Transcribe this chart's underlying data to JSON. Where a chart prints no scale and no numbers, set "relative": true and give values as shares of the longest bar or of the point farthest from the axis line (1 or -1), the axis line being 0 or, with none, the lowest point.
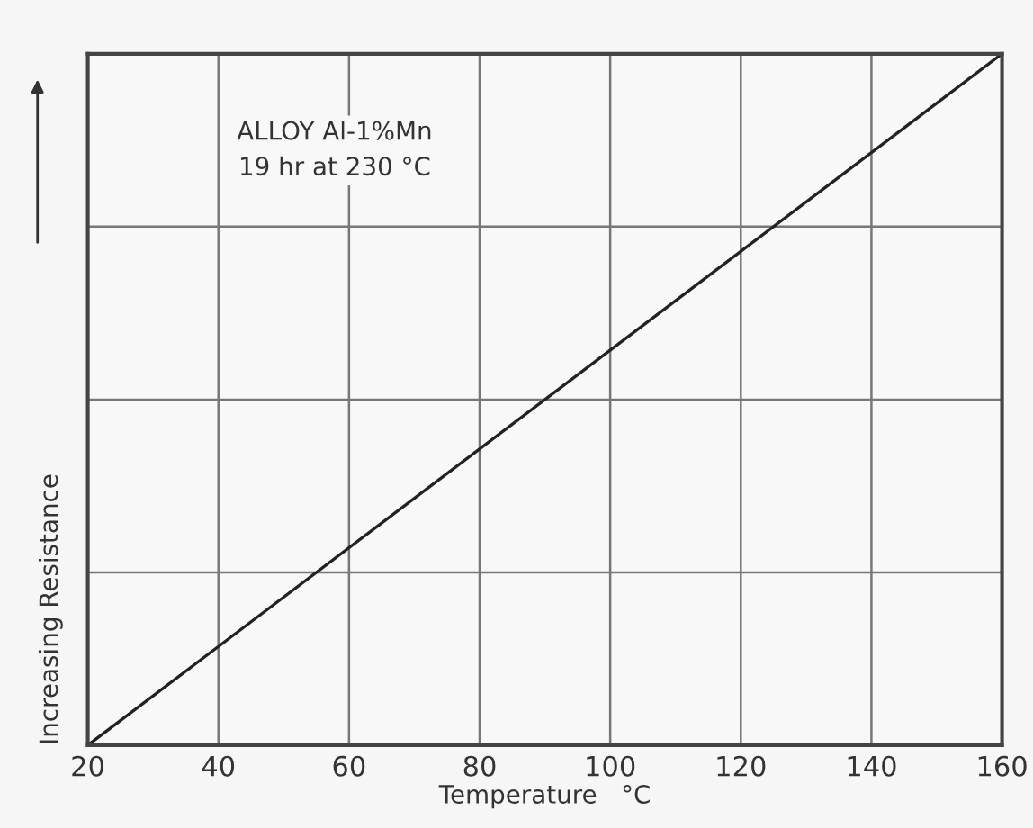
{
  "chart_data": {
    "type": "line",
    "xlabel": "Temperature   °C",
    "ylabel": "Increasing Resistance",
    "annotations": [
      "ALLOY Al-1%Mn\n19 hr at 230 °C"
    ],
    "x": [
      20,
      160
    ],
    "series": [
      {
        "color": "#222222",
        "values": [
          0,
          1
        ]
      }
    ],
    "relative": true,
    "xlim": [
      20,
      160
    ],
    "xticks": [
      20,
      40,
      60,
      80,
      100,
      120,
      140,
      160
    ],
    "grid": true,
    "legend": false,
    "marker": "none",
    "line_style": "solid"
  }
}
